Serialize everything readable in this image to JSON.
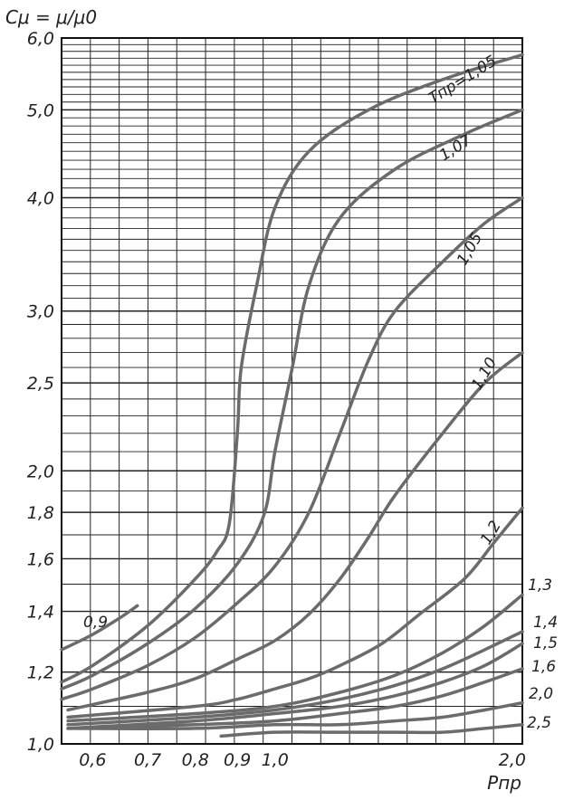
{
  "chart_data": {
    "type": "line",
    "title": "",
    "ylabel": "Cμ = μ/μ0",
    "xlabel": "Pпр",
    "x_scale": "log",
    "y_scale": "log",
    "xlim": [
      0.55,
      2.0
    ],
    "ylim": [
      1.0,
      6.0
    ],
    "grid": true,
    "x_ticks": [
      {
        "value": 0.6,
        "label": "0,6"
      },
      {
        "value": 0.7,
        "label": "0,7"
      },
      {
        "value": 0.8,
        "label": "0,8"
      },
      {
        "value": 0.9,
        "label": "0,9"
      },
      {
        "value": 1.0,
        "label": "1,0"
      },
      {
        "value": 2.0,
        "label": "2,0"
      }
    ],
    "y_ticks": [
      {
        "value": 1.0,
        "label": "1,0"
      },
      {
        "value": 1.2,
        "label": "1,2"
      },
      {
        "value": 1.4,
        "label": "1,4"
      },
      {
        "value": 1.6,
        "label": "1,6"
      },
      {
        "value": 1.8,
        "label": "1,8"
      },
      {
        "value": 2.0,
        "label": "2,0"
      },
      {
        "value": 2.5,
        "label": "2,5"
      },
      {
        "value": 3.0,
        "label": "3,0"
      },
      {
        "value": 4.0,
        "label": "4,0"
      },
      {
        "value": 5.0,
        "label": "5,0"
      },
      {
        "value": 6.0,
        "label": "6,0"
      }
    ],
    "series": [
      {
        "name": "0,9",
        "points": [
          [
            0.55,
            1.27
          ],
          [
            0.6,
            1.32
          ],
          [
            0.65,
            1.38
          ],
          [
            0.68,
            1.42
          ]
        ]
      },
      {
        "name": "Tпр=1,05",
        "points": [
          [
            0.55,
            1.17
          ],
          [
            0.6,
            1.22
          ],
          [
            0.7,
            1.35
          ],
          [
            0.8,
            1.52
          ],
          [
            0.85,
            1.63
          ],
          [
            0.88,
            1.75
          ],
          [
            0.9,
            2.2
          ],
          [
            0.91,
            2.6
          ],
          [
            0.95,
            3.2
          ],
          [
            1.0,
            3.9
          ],
          [
            1.1,
            4.5
          ],
          [
            1.3,
            5.0
          ],
          [
            1.6,
            5.4
          ],
          [
            2.0,
            5.75
          ]
        ]
      },
      {
        "name": "1,07",
        "points": [
          [
            0.55,
            1.15
          ],
          [
            0.6,
            1.19
          ],
          [
            0.7,
            1.29
          ],
          [
            0.8,
            1.41
          ],
          [
            0.9,
            1.58
          ],
          [
            0.97,
            1.79
          ],
          [
            1.0,
            2.1
          ],
          [
            1.05,
            2.6
          ],
          [
            1.1,
            3.2
          ],
          [
            1.2,
            3.8
          ],
          [
            1.4,
            4.3
          ],
          [
            1.7,
            4.7
          ],
          [
            2.0,
            5.0
          ]
        ]
      },
      {
        "name": "1,05",
        "points": [
          [
            0.55,
            1.12
          ],
          [
            0.6,
            1.15
          ],
          [
            0.7,
            1.22
          ],
          [
            0.8,
            1.31
          ],
          [
            0.9,
            1.43
          ],
          [
            1.0,
            1.57
          ],
          [
            1.1,
            1.8
          ],
          [
            1.2,
            2.2
          ],
          [
            1.3,
            2.65
          ],
          [
            1.4,
            3.0
          ],
          [
            1.6,
            3.4
          ],
          [
            1.8,
            3.75
          ],
          [
            2.0,
            4.0
          ]
        ]
      },
      {
        "name": "1,10",
        "points": [
          [
            0.56,
            1.09
          ],
          [
            0.7,
            1.14
          ],
          [
            0.8,
            1.18
          ],
          [
            0.9,
            1.24
          ],
          [
            1.0,
            1.3
          ],
          [
            1.1,
            1.39
          ],
          [
            1.2,
            1.52
          ],
          [
            1.3,
            1.69
          ],
          [
            1.4,
            1.88
          ],
          [
            1.6,
            2.2
          ],
          [
            1.8,
            2.5
          ],
          [
            2.0,
            2.7
          ]
        ]
      },
      {
        "name": "1,2",
        "points": [
          [
            0.56,
            1.07
          ],
          [
            0.8,
            1.1
          ],
          [
            0.9,
            1.12
          ],
          [
            1.0,
            1.15
          ],
          [
            1.1,
            1.18
          ],
          [
            1.2,
            1.22
          ],
          [
            1.35,
            1.29
          ],
          [
            1.5,
            1.39
          ],
          [
            1.7,
            1.52
          ],
          [
            1.85,
            1.67
          ],
          [
            2.0,
            1.82
          ]
        ]
      },
      {
        "name": "1,3",
        "points": [
          [
            0.56,
            1.06
          ],
          [
            0.8,
            1.08
          ],
          [
            1.0,
            1.1
          ],
          [
            1.2,
            1.14
          ],
          [
            1.4,
            1.19
          ],
          [
            1.6,
            1.26
          ],
          [
            1.8,
            1.35
          ],
          [
            2.0,
            1.46
          ]
        ]
      },
      {
        "name": "1,4",
        "points": [
          [
            0.56,
            1.05
          ],
          [
            0.8,
            1.07
          ],
          [
            1.0,
            1.09
          ],
          [
            1.2,
            1.12
          ],
          [
            1.4,
            1.16
          ],
          [
            1.6,
            1.21
          ],
          [
            1.8,
            1.27
          ],
          [
            2.0,
            1.33
          ]
        ]
      },
      {
        "name": "1,5",
        "points": [
          [
            0.56,
            1.04
          ],
          [
            0.8,
            1.06
          ],
          [
            1.0,
            1.08
          ],
          [
            1.2,
            1.1
          ],
          [
            1.4,
            1.13
          ],
          [
            1.6,
            1.17
          ],
          [
            1.8,
            1.22
          ],
          [
            2.0,
            1.29
          ]
        ]
      },
      {
        "name": "1,6",
        "points": [
          [
            0.56,
            1.04
          ],
          [
            0.8,
            1.05
          ],
          [
            1.0,
            1.06
          ],
          [
            1.2,
            1.08
          ],
          [
            1.4,
            1.1
          ],
          [
            1.6,
            1.13
          ],
          [
            1.8,
            1.17
          ],
          [
            2.0,
            1.21
          ]
        ]
      },
      {
        "name": "2,0",
        "points": [
          [
            0.56,
            1.04
          ],
          [
            0.8,
            1.04
          ],
          [
            1.0,
            1.05
          ],
          [
            1.2,
            1.05
          ],
          [
            1.4,
            1.06
          ],
          [
            1.6,
            1.07
          ],
          [
            1.8,
            1.09
          ],
          [
            2.0,
            1.11
          ]
        ]
      },
      {
        "name": "2,5",
        "points": [
          [
            0.86,
            1.02
          ],
          [
            1.0,
            1.03
          ],
          [
            1.2,
            1.03
          ],
          [
            1.4,
            1.03
          ],
          [
            1.6,
            1.03
          ],
          [
            1.8,
            1.04
          ],
          [
            2.0,
            1.05
          ]
        ]
      }
    ]
  }
}
